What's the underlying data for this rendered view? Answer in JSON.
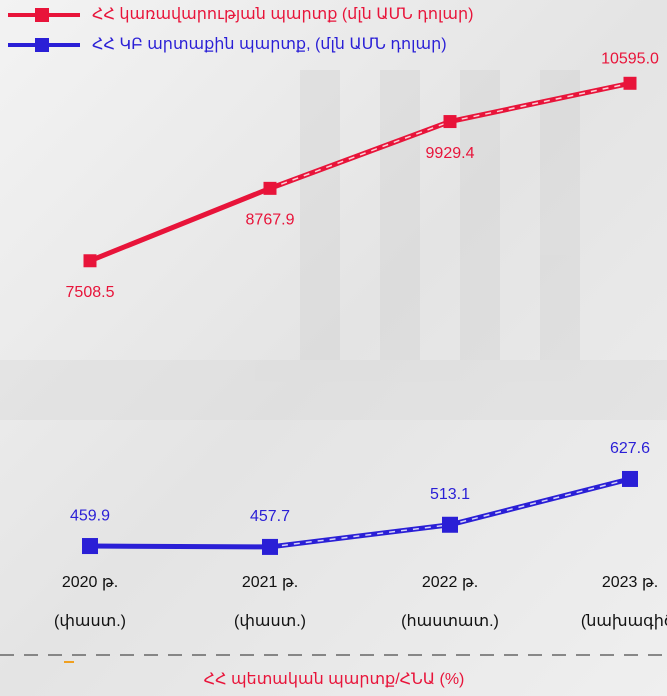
{
  "chart_data": {
    "type": "line",
    "categories": [
      "2020 թ.",
      "2021 թ.",
      "2022 թ.",
      "2023 թ."
    ],
    "category_notes": [
      "(փաստ.)",
      "(փաստ.)",
      "(հաստատ.)",
      "(նախագիծ)"
    ],
    "series": [
      {
        "name": "ՀՀ կառավարության պարտք (մլն ԱՄՆ դոլար)",
        "color": "#e8143a",
        "values": [
          7508.5,
          8767.9,
          9929.4,
          10595
        ],
        "value_labels": [
          "7508.5",
          "8767.9",
          "9929.4",
          "10595.0"
        ]
      },
      {
        "name": "ՀՀ ԿԲ արտաքին պարտք, (մլն ԱՄՆ դոլար)",
        "color": "#2a1fd6",
        "axis": "y2",
        "values": [
          459.9,
          457.7,
          513.1,
          627.6
        ],
        "value_labels": [
          "459.9",
          "457.7",
          "513.1",
          "627.6"
        ]
      }
    ],
    "ylim": [
      7000,
      11000
    ],
    "y2lim": [
      400,
      700
    ],
    "legend": "top-left",
    "footer_label": "ՀՀ պետական պարտք/ՀՆԱ (%)"
  }
}
